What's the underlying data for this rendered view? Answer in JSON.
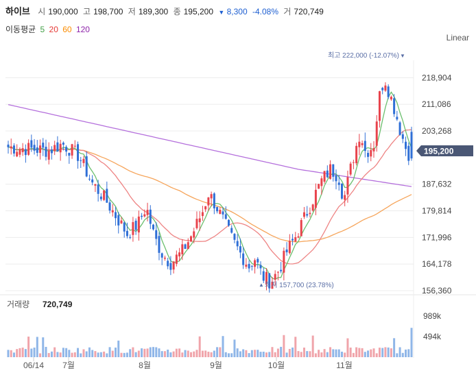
{
  "header": {
    "name": "하이브",
    "open_label": "시",
    "open": "190,000",
    "high_label": "고",
    "high": "198,700",
    "low_label": "저",
    "low": "189,300",
    "close_label": "종",
    "close": "195,200",
    "change_arrow": "▼",
    "change": "8,300",
    "change_pct": "-4.08%",
    "volume_label": "거",
    "volume": "720,749"
  },
  "ma_legend": {
    "title": "이동평균",
    "items": [
      {
        "label": "5",
        "color": "#43a047"
      },
      {
        "label": "20",
        "color": "#e53935"
      },
      {
        "label": "60",
        "color": "#fb8c00"
      },
      {
        "label": "120",
        "color": "#8e24aa"
      }
    ]
  },
  "scale_button": "Linear",
  "chart_data": {
    "type": "candlestick",
    "y_ticks": [
      "218,904",
      "211,086",
      "203,268",
      "195,200",
      "187,632",
      "179,814",
      "171,996",
      "164,178",
      "156,360"
    ],
    "ylim": [
      156360,
      224000
    ],
    "x_labels": [
      "06/14",
      "7월",
      "8월",
      "9월",
      "10월",
      "11월"
    ],
    "current_price_label": "195,200",
    "max_annotation": "최고 222,000 (-12.07%)",
    "min_annotation": "최저 157,700 (23.78%)",
    "volume_title": "거래량",
    "volume_value": "720,749",
    "volume_ticks": [
      "989k",
      "494k"
    ],
    "up_color": "#e8434c",
    "down_color": "#2f6fd6"
  }
}
